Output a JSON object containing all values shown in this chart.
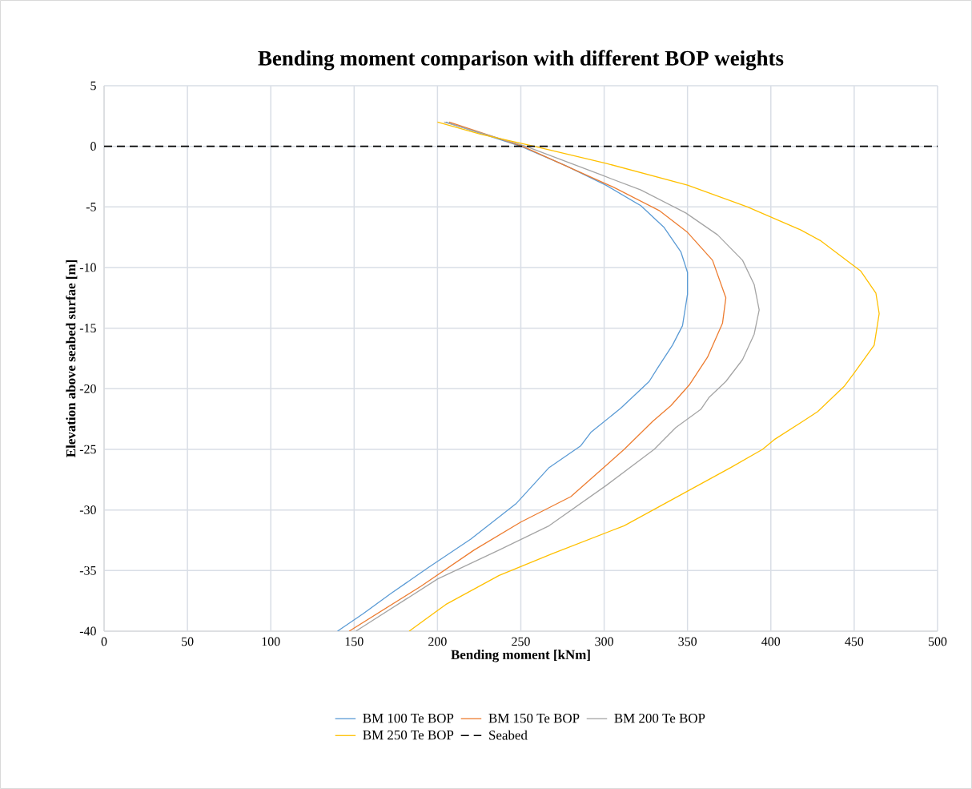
{
  "chart_data": {
    "type": "line",
    "title": "Bending moment comparison with different BOP weights",
    "xlabel": "Bending moment [kNm]",
    "ylabel": "Elevation above seabed surfae [m]",
    "xlim": [
      0,
      500
    ],
    "ylim": [
      -40,
      5
    ],
    "xticks": [
      0,
      50,
      100,
      150,
      200,
      250,
      300,
      350,
      400,
      450,
      500
    ],
    "yticks": [
      -40,
      -35,
      -30,
      -25,
      -20,
      -15,
      -10,
      -5,
      0,
      5
    ],
    "grid": true,
    "legend": "bottom",
    "series": [
      {
        "name": "BM 100 Te BOP",
        "color": "#5b9bd5",
        "x": [
          205,
          250,
          277,
          301,
          322,
          336,
          346,
          350,
          350,
          347,
          341,
          332,
          327,
          310,
          292,
          286,
          267,
          247,
          220,
          194,
          172,
          155,
          140
        ],
        "values": [
          2,
          0,
          -1.6,
          -3.2,
          -4.9,
          -6.7,
          -8.7,
          -10.4,
          -12.2,
          -14.8,
          -16.4,
          -18.3,
          -19.4,
          -21.6,
          -23.6,
          -24.7,
          -26.5,
          -29.5,
          -32.4,
          -34.8,
          -36.9,
          -38.6,
          -40
        ]
      },
      {
        "name": "BM 150 Te BOP",
        "color": "#ed7d31",
        "x": [
          207,
          251,
          280,
          306,
          333,
          350,
          365,
          373,
          371,
          362,
          351,
          340,
          329,
          312,
          280,
          250,
          222,
          190,
          147
        ],
        "values": [
          2,
          0,
          -1.8,
          -3.4,
          -5.3,
          -7.1,
          -9.4,
          -12.5,
          -14.6,
          -17.4,
          -19.7,
          -21.4,
          -22.7,
          -25,
          -28.9,
          -31,
          -33.3,
          -36.3,
          -40
        ]
      },
      {
        "name": "BM 200 Te BOP",
        "color": "#a5a5a5",
        "x": [
          204,
          253,
          299,
          322,
          349,
          368,
          383,
          390,
          393,
          390,
          383,
          373,
          363,
          358,
          343,
          330,
          301,
          267,
          237,
          200,
          151
        ],
        "values": [
          2,
          0,
          -2.4,
          -3.6,
          -5.5,
          -7.3,
          -9.4,
          -11.4,
          -13.5,
          -15.5,
          -17.6,
          -19.4,
          -20.7,
          -21.7,
          -23.2,
          -25,
          -28,
          -31.3,
          -33.3,
          -35.7,
          -40
        ]
      },
      {
        "name": "BM 250 Te BOP",
        "color": "#ffc000",
        "x": [
          200,
          226,
          258,
          301,
          350,
          386,
          418,
          430,
          454,
          463,
          465,
          462,
          450,
          444,
          428,
          419,
          402,
          395,
          376,
          344,
          312,
          269,
          237,
          205,
          183
        ],
        "values": [
          2,
          1,
          0,
          -1.4,
          -3.2,
          -5,
          -6.9,
          -7.8,
          -10.3,
          -12.1,
          -13.8,
          -16.4,
          -18.7,
          -19.8,
          -21.9,
          -22.7,
          -24.2,
          -25,
          -26.5,
          -28.9,
          -31.3,
          -33.6,
          -35.4,
          -37.8,
          -40
        ]
      },
      {
        "name": "Seabed",
        "color": "#000000",
        "line_style": "dashed",
        "x": [
          0,
          500
        ],
        "values": [
          0,
          0
        ]
      }
    ]
  }
}
